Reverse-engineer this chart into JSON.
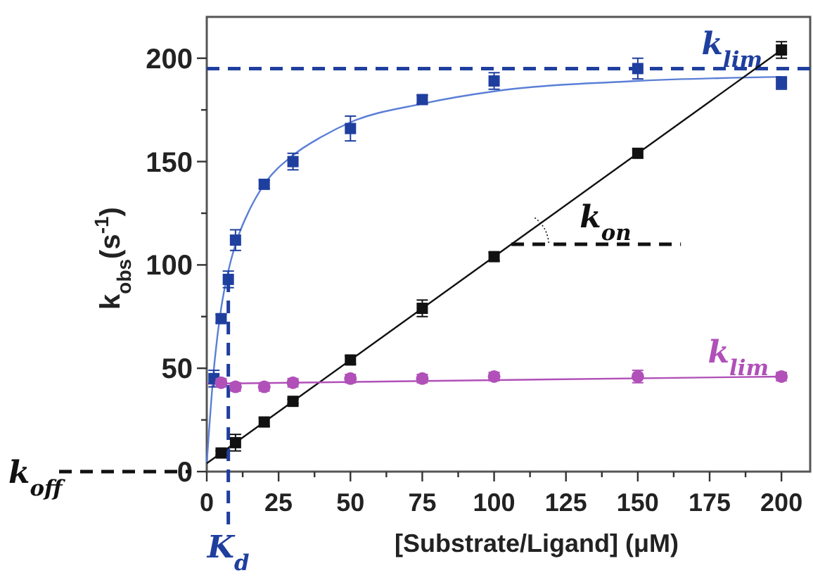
{
  "chart_data": {
    "type": "scatter",
    "xlabel": "[Substrate/Ligand] (μM)",
    "ylabel": "k$_{obs}$(s$^{-1}$)",
    "xlim": [
      0,
      210
    ],
    "ylim": [
      0,
      220
    ],
    "xticks": [
      0,
      {
        "value": 12.5,
        "label": null
      },
      25,
      {
        "value": 37.5,
        "label": null
      },
      50,
      {
        "value": 62.5,
        "label": null
      },
      75,
      {
        "value": 87.5,
        "label": null
      },
      100,
      {
        "value": 112.5,
        "label": null
      },
      125,
      {
        "value": 137.5,
        "label": null
      },
      150,
      {
        "value": 162.5,
        "label": null
      },
      175,
      {
        "value": 187.5,
        "label": null
      },
      200
    ],
    "yticks": [
      0,
      {
        "value": 25,
        "label": null
      },
      50,
      {
        "value": 75,
        "label": null
      },
      100,
      {
        "value": 125,
        "label": null
      },
      150,
      {
        "value": 175,
        "label": null
      },
      200
    ],
    "grid": false,
    "series": [
      {
        "type": "line",
        "color": "#5b7fd6",
        "marker": "none",
        "x": [
          0,
          2.5,
          5,
          7.5,
          10,
          15,
          20,
          30,
          40,
          50,
          75,
          100,
          150,
          200
        ],
        "values": [
          4,
          50,
          79,
          97,
          110,
          127,
          139,
          153,
          162,
          169,
          178,
          184,
          189,
          191
        ]
      },
      {
        "type": "line",
        "color": "#111111",
        "marker": "none",
        "x": [
          0,
          200
        ],
        "values": [
          4,
          204
        ]
      },
      {
        "type": "line",
        "color": "#b050b8",
        "marker": "none",
        "x": [
          0,
          200
        ],
        "values": [
          42.5,
          46
        ]
      },
      {
        "color": "#1f3f9f",
        "marker": "square",
        "x": [
          2.5,
          5,
          7.5,
          10,
          20,
          30,
          50,
          75,
          100,
          150,
          200
        ],
        "values": [
          45,
          74,
          93,
          112,
          139,
          150,
          166,
          180,
          189,
          195,
          188
        ],
        "errors": [
          4,
          2,
          4,
          5,
          2,
          4,
          6,
          2,
          4,
          5,
          3
        ]
      },
      {
        "color": "#111111",
        "marker": "square",
        "x": [
          5,
          10,
          20,
          30,
          50,
          75,
          100,
          150,
          200
        ],
        "values": [
          9,
          14,
          24,
          34,
          54,
          79,
          104,
          154,
          204
        ],
        "errors": [
          1,
          4,
          2,
          1,
          2,
          4,
          2,
          2,
          4
        ]
      },
      {
        "color": "#b050b8",
        "marker": "circle",
        "x": [
          5,
          10,
          20,
          30,
          50,
          75,
          100,
          150,
          200
        ],
        "values": [
          43,
          41,
          41,
          43,
          45,
          45,
          46,
          46,
          46
        ],
        "errors": [
          2,
          2,
          2,
          2,
          2,
          2,
          2,
          3,
          2
        ]
      }
    ],
    "ref_lines": [
      {
        "axis": "y",
        "value": 195,
        "label": "k$_{lim}$",
        "color": "#1f3f9f",
        "line_style": "dashed"
      },
      {
        "axis": "x",
        "value": 7.5,
        "label": "K$_{d}$",
        "color": "#1f3f9f",
        "line_style": "dashed"
      },
      {
        "axis": "y",
        "value": 0,
        "label": "k$_{off}$",
        "color": "#111111",
        "line_style": "dashed"
      }
    ],
    "annotations": [
      "k$_{on}$",
      "k$_{lim}$"
    ]
  }
}
